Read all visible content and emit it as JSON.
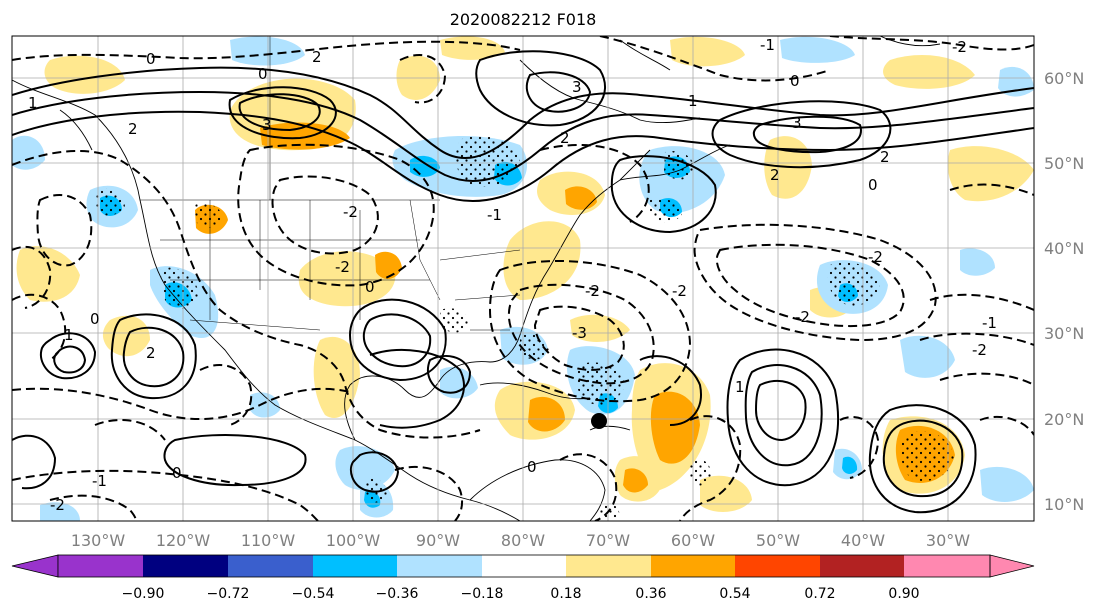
{
  "title": "2020082212 F018",
  "map": {
    "projection": "Plate Carree",
    "lon_range": [
      "135°W",
      "15°W"
    ],
    "lat_range": [
      "8°N",
      "65°N"
    ],
    "lon_ticks": [
      "130°W",
      "120°W",
      "110°W",
      "100°W",
      "90°W",
      "80°W",
      "70°W",
      "60°W",
      "50°W",
      "40°W",
      "30°W"
    ],
    "lat_ticks": [
      "60°N",
      "50°N",
      "40°N",
      "30°N",
      "20°N",
      "10°N"
    ],
    "grid": true,
    "marker": {
      "label": "black dot",
      "lon": -70.5,
      "lat": 20.0
    },
    "contours": {
      "solid": "positive values",
      "dashed": "negative values",
      "labels": [
        "3",
        "2",
        "1",
        "0",
        "-1",
        "-2",
        "-3"
      ]
    },
    "shading": "stippled where significant"
  },
  "colorbar": {
    "ticks": [
      "−0.90",
      "−0.72",
      "−0.54",
      "−0.36",
      "−0.18",
      "0.18",
      "0.36",
      "0.54",
      "0.72",
      "0.90"
    ],
    "colors": [
      "#9933cc",
      "#000080",
      "#3a5fcd",
      "#00bfff",
      "#b0e2ff",
      "#ffffff",
      "#ffe88f",
      "#ffa500",
      "#ff4500",
      "#b22222",
      "#ff88b0"
    ],
    "extend": "both"
  }
}
